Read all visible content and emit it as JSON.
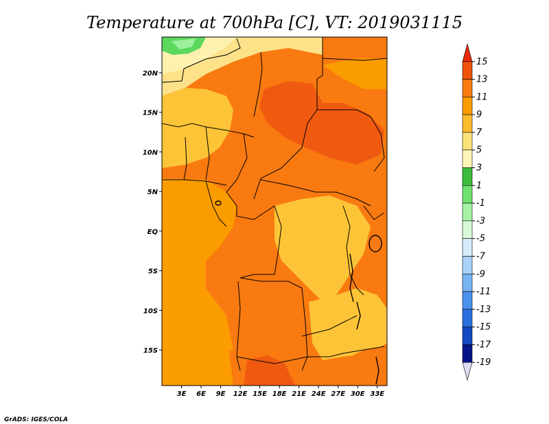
{
  "title": "Temperature at 700hPa [C], VT: 2019031115",
  "credit": "GrADS: IGES/COLA",
  "map": {
    "lon_range": [
      0,
      34.5
    ],
    "lat_range": [
      -19.5,
      24.5
    ],
    "lat_ticks": [
      {
        "value": 20,
        "label": "20N"
      },
      {
        "value": 15,
        "label": "15N"
      },
      {
        "value": 10,
        "label": "10N"
      },
      {
        "value": 5,
        "label": "5N"
      },
      {
        "value": 0,
        "label": "EQ"
      },
      {
        "value": -5,
        "label": "5S"
      },
      {
        "value": -10,
        "label": "10S"
      },
      {
        "value": -15,
        "label": "15S"
      }
    ],
    "lon_ticks": [
      {
        "value": 3,
        "label": "3E"
      },
      {
        "value": 6,
        "label": "6E"
      },
      {
        "value": 9,
        "label": "9E"
      },
      {
        "value": 12,
        "label": "12E"
      },
      {
        "value": 15,
        "label": "15E"
      },
      {
        "value": 18,
        "label": "18E"
      },
      {
        "value": 21,
        "label": "21E"
      },
      {
        "value": 24,
        "label": "24E"
      },
      {
        "value": 27,
        "label": "27E"
      },
      {
        "value": 30,
        "label": "30E"
      },
      {
        "value": 33,
        "label": "33E"
      }
    ],
    "field_colors": {
      "warm_mid": "#fb9c00",
      "warm_light": "#fdc437",
      "warm_orange": "#f87a10",
      "hot": "#f05a10",
      "cool_yellow": "#fde28a",
      "pale_yellow": "#fef1b0",
      "green": "#5cd95c",
      "light_green": "#9ef09e"
    }
  },
  "colorbar": {
    "labels": [
      "15",
      "13",
      "11",
      "9",
      "7",
      "5",
      "3",
      "1",
      "-1",
      "-3",
      "-5",
      "-7",
      "-9",
      "-11",
      "-13",
      "-15",
      "-17",
      "-19"
    ],
    "colors": [
      "#e8290a",
      "#f0540a",
      "#f87a10",
      "#fb9c00",
      "#fdbc30",
      "#fde27a",
      "#fef6b8",
      "#3cbc3c",
      "#6fe36f",
      "#a6f3a6",
      "#d8fad8",
      "#d6ecfa",
      "#a8d2f8",
      "#78b4f4",
      "#4a92ec",
      "#2a6ee0",
      "#1448c0",
      "#06148a",
      "#dcdcf4"
    ]
  }
}
